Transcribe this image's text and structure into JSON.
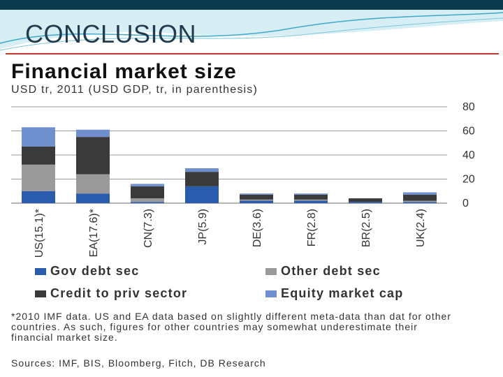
{
  "slide": {
    "title": "CONCLUSION",
    "colors": {
      "topbar": "#0b3a4c",
      "rule": "#c0392b",
      "title": "#1f3b4d"
    }
  },
  "figure": {
    "title": "Financial market size",
    "subtitle": "USD tr, 2011 (USD GDP, tr, in parenthesis)",
    "footnote": "*2010 IMF data. US and EA data based on slightly different meta-data than dat for other countries. As such, figures for other countries may somewhat underestimate their financial market size.",
    "sources": "Sources: IMF, BIS, Bloomberg, Fitch, DB Research"
  },
  "chart_data": {
    "type": "bar",
    "stacked": true,
    "categories": [
      "US(15.1)*",
      "EA(17.6)*",
      "CN(7.3)",
      "JP(5.9)",
      "DE(3.6)",
      "FR(2.8)",
      "BR(2.5)",
      "UK(2.4)"
    ],
    "series": [
      {
        "name": "Gov debt sec",
        "color": "#2a5cad",
        "values": [
          10,
          8,
          1,
          14,
          2,
          2,
          1,
          1
        ]
      },
      {
        "name": "Other debt sec",
        "color": "#9a9a9a",
        "values": [
          22,
          16,
          3,
          0,
          1,
          1,
          0,
          1
        ]
      },
      {
        "name": "Credit to priv sector",
        "color": "#3a3a3a",
        "values": [
          15,
          31,
          10,
          12,
          4,
          4,
          3,
          5
        ]
      },
      {
        "name": "Equity market cap",
        "color": "#6f8fce",
        "values": [
          16,
          6,
          2,
          3,
          1,
          1,
          0,
          2
        ]
      }
    ],
    "yticks": [
      0,
      20,
      40,
      60,
      80
    ],
    "ylim": [
      0,
      80
    ],
    "y_axis_position": "right",
    "grid": true,
    "legend_position": "bottom"
  }
}
